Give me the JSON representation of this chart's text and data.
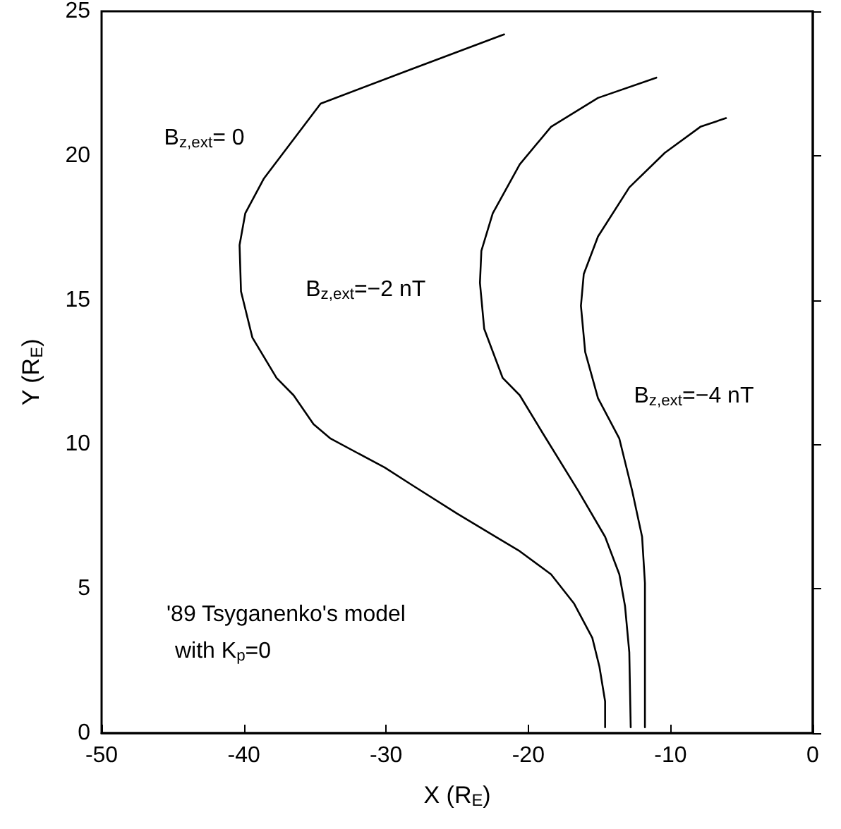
{
  "chart_data": {
    "type": "line",
    "xlabel": "X (R$_{E}$)",
    "ylabel": "Y (R$_{E}$)",
    "xlim": [
      -50,
      0
    ],
    "xticks": [
      -50,
      -40,
      -30,
      -20,
      -10,
      0
    ],
    "ylim": [
      0,
      25
    ],
    "yticks": [
      0,
      5,
      10,
      15,
      20,
      25
    ],
    "grid": false,
    "marker": "none",
    "legend": false,
    "annotations": [
      "'89 Tsyganenko's model",
      "with K$_{p}$=0"
    ],
    "series": [
      {
        "name": "B$_{z,ext}$= 0",
        "color": "#000000",
        "x": [
          -14.6,
          -14.6,
          -15.0,
          -15.5,
          -16.8,
          -18.4,
          -20.6,
          -25.0,
          -28.2,
          -30.1,
          -33.9,
          -35.1,
          -36.5,
          -37.7,
          -39.4,
          -40.2,
          -40.3,
          -39.9,
          -38.6,
          -34.6,
          -28.2,
          -21.7
        ],
        "values": [
          0.2,
          1.1,
          2.3,
          3.3,
          4.5,
          5.5,
          6.3,
          7.6,
          8.6,
          9.2,
          10.2,
          10.7,
          11.7,
          12.3,
          13.7,
          15.3,
          16.9,
          18.0,
          19.2,
          21.8,
          23.0,
          24.2
        ]
      },
      {
        "name": "B$_{z,ext}$=−2 nT",
        "color": "#000000",
        "x": [
          -12.8,
          -12.9,
          -13.2,
          -13.6,
          -14.6,
          -16.5,
          -19.0,
          -20.6,
          -21.8,
          -23.1,
          -23.4,
          -23.3,
          -22.5,
          -20.6,
          -18.4,
          -15.1,
          -11.0
        ],
        "values": [
          0.2,
          2.8,
          4.4,
          5.5,
          6.8,
          8.4,
          10.4,
          11.7,
          12.3,
          14.0,
          15.6,
          16.7,
          18.0,
          19.7,
          21.0,
          22.0,
          22.7
        ]
      },
      {
        "name": "B$_{z,ext}$=−4 nT",
        "color": "#000000",
        "x": [
          -11.8,
          -11.8,
          -11.8,
          -12.0,
          -12.7,
          -13.6,
          -15.1,
          -16.0,
          -16.3,
          -16.1,
          -15.1,
          -12.9,
          -10.4,
          -7.9,
          -6.1
        ],
        "values": [
          0.2,
          2.0,
          5.2,
          6.8,
          8.4,
          10.2,
          11.6,
          13.2,
          14.8,
          15.9,
          17.2,
          18.9,
          20.1,
          21.0,
          21.3
        ]
      }
    ]
  }
}
